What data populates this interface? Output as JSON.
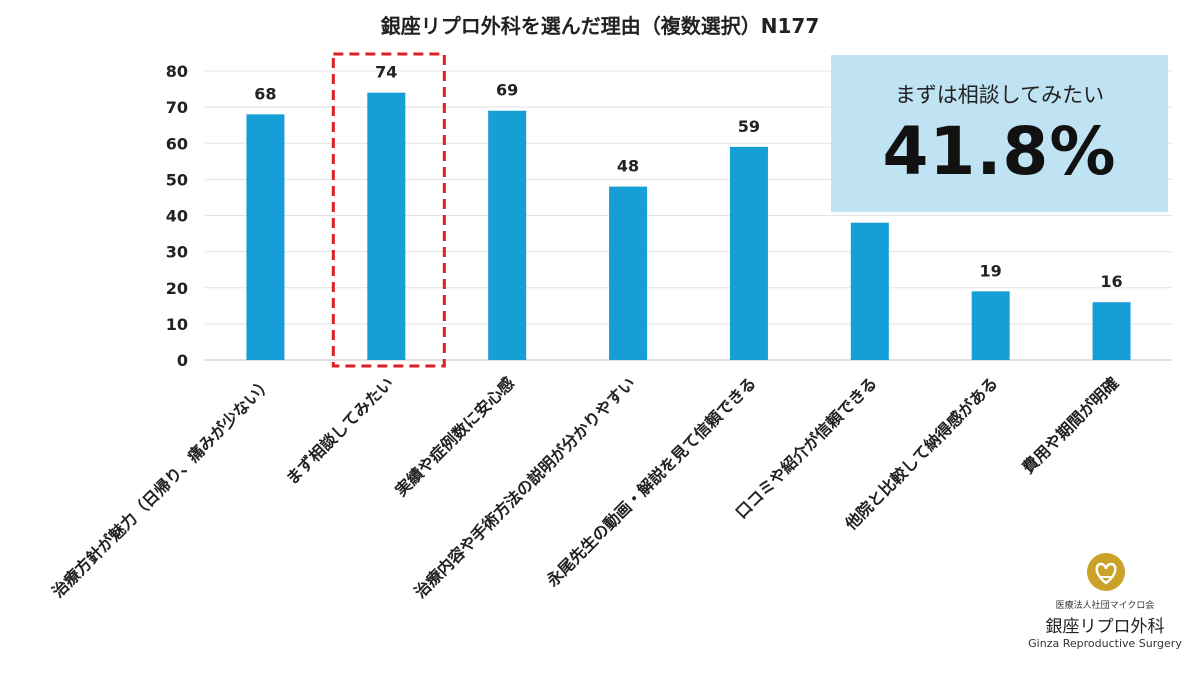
{
  "chart_data": {
    "type": "bar",
    "title": "銀座リプロ外科を選んだ理由（複数選択）N177",
    "categories": [
      "治療方針が魅力（日帰り、痛みが少ない）",
      "まず相談してみたい",
      "実績や症例数に安心感",
      "治療内容や手術方法の説明が分かりやすい",
      "永尾先生の動画・解説を見て信頼できる",
      "口コミや紹介が信頼できる",
      "他院と比較して納得感がある",
      "費用や期間が明確"
    ],
    "values": [
      68,
      74,
      69,
      48,
      59,
      38,
      19,
      16
    ],
    "data_labels": [
      "68",
      "74",
      "69",
      "48",
      "59",
      "",
      "19",
      "16"
    ],
    "yticks": [
      0,
      10,
      20,
      30,
      40,
      50,
      60,
      70,
      80
    ],
    "ylim": [
      0,
      80
    ],
    "grid": true,
    "highlight_index": 1,
    "bar_color": "#159fd6",
    "highlight_color": "#e02020"
  },
  "callout": {
    "label": "まずは相談してみたい",
    "value": "41.8%",
    "background": "#bfe3f3"
  },
  "logo": {
    "org": "医療法人社団マイクロ会",
    "name": "銀座リプロ外科",
    "english": "Ginza Reproductive Surgery",
    "mark_color": "#c9a227"
  }
}
